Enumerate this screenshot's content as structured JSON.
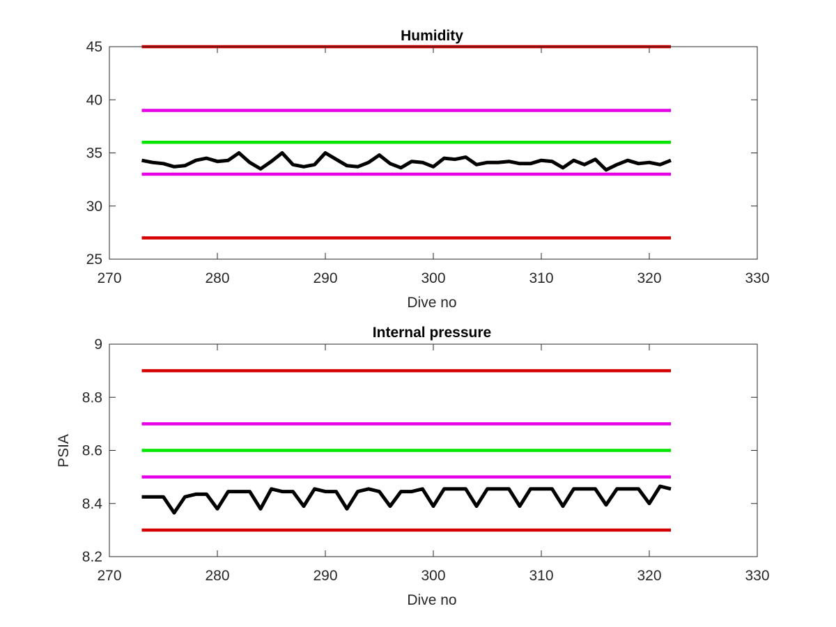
{
  "chart_data": [
    {
      "type": "line",
      "title": "Humidity",
      "xlabel": "Dive no",
      "ylabel": "",
      "xlim": [
        270,
        330
      ],
      "ylim": [
        25,
        45
      ],
      "xticks": [
        270,
        280,
        290,
        300,
        310,
        320,
        330
      ],
      "yticks": [
        25,
        30,
        35,
        40,
        45
      ],
      "grid": false,
      "series": [
        {
          "color": "#d40000",
          "x": [
            273,
            322
          ],
          "y": [
            45,
            45
          ]
        },
        {
          "color": "#e600e6",
          "x": [
            273,
            322
          ],
          "y": [
            39,
            39
          ]
        },
        {
          "color": "#00e600",
          "x": [
            273,
            322
          ],
          "y": [
            36,
            36
          ]
        },
        {
          "color": "#e600e6",
          "x": [
            273,
            322
          ],
          "y": [
            33,
            33
          ]
        },
        {
          "color": "#d40000",
          "x": [
            273,
            322
          ],
          "y": [
            27,
            27
          ]
        },
        {
          "color": "#000000",
          "x": [
            273,
            274,
            275,
            276,
            277,
            278,
            279,
            280,
            281,
            282,
            283,
            284,
            285,
            286,
            287,
            288,
            289,
            290,
            291,
            292,
            293,
            294,
            295,
            296,
            297,
            298,
            299,
            300,
            301,
            302,
            303,
            304,
            305,
            306,
            307,
            308,
            309,
            310,
            311,
            312,
            313,
            314,
            315,
            316,
            317,
            318,
            319,
            320,
            321,
            322
          ],
          "y": [
            34.3,
            34.1,
            34.0,
            33.7,
            33.8,
            34.3,
            34.5,
            34.2,
            34.3,
            35.0,
            34.1,
            33.5,
            34.2,
            35.0,
            33.9,
            33.7,
            33.9,
            35.0,
            34.4,
            33.8,
            33.7,
            34.1,
            34.8,
            34.0,
            33.6,
            34.2,
            34.1,
            33.7,
            34.5,
            34.4,
            34.6,
            33.9,
            34.1,
            34.1,
            34.2,
            34.0,
            34.0,
            34.3,
            34.2,
            33.6,
            34.3,
            33.9,
            34.4,
            33.4,
            33.9,
            34.3,
            34.0,
            34.1,
            33.9,
            34.3
          ]
        }
      ]
    },
    {
      "type": "line",
      "title": "Internal pressure",
      "xlabel": "Dive no",
      "ylabel": "PSIA",
      "xlim": [
        270,
        330
      ],
      "ylim": [
        8.2,
        9.0
      ],
      "xticks": [
        270,
        280,
        290,
        300,
        310,
        320,
        330
      ],
      "yticks": [
        8.2,
        8.4,
        8.6,
        8.8,
        9.0
      ],
      "ytick_labels": [
        "8.2",
        "8.4",
        "8.6",
        "8.8",
        "9"
      ],
      "grid": false,
      "series": [
        {
          "color": "#d40000",
          "x": [
            273,
            322
          ],
          "y": [
            8.9,
            8.9
          ]
        },
        {
          "color": "#e600e6",
          "x": [
            273,
            322
          ],
          "y": [
            8.7,
            8.7
          ]
        },
        {
          "color": "#00e600",
          "x": [
            273,
            322
          ],
          "y": [
            8.6,
            8.6
          ]
        },
        {
          "color": "#e600e6",
          "x": [
            273,
            322
          ],
          "y": [
            8.5,
            8.5
          ]
        },
        {
          "color": "#d40000",
          "x": [
            273,
            322
          ],
          "y": [
            8.3,
            8.3
          ]
        },
        {
          "color": "#000000",
          "x": [
            273,
            274,
            275,
            276,
            277,
            278,
            279,
            280,
            281,
            282,
            283,
            284,
            285,
            286,
            287,
            288,
            289,
            290,
            291,
            292,
            293,
            294,
            295,
            296,
            297,
            298,
            299,
            300,
            301,
            302,
            303,
            304,
            305,
            306,
            307,
            308,
            309,
            310,
            311,
            312,
            313,
            314,
            315,
            316,
            317,
            318,
            319,
            320,
            321,
            322
          ],
          "y": [
            8.425,
            8.425,
            8.425,
            8.365,
            8.425,
            8.435,
            8.435,
            8.38,
            8.445,
            8.445,
            8.445,
            8.38,
            8.455,
            8.445,
            8.445,
            8.39,
            8.455,
            8.445,
            8.445,
            8.38,
            8.445,
            8.455,
            8.445,
            8.39,
            8.445,
            8.445,
            8.455,
            8.39,
            8.455,
            8.455,
            8.455,
            8.39,
            8.455,
            8.455,
            8.455,
            8.39,
            8.455,
            8.455,
            8.455,
            8.39,
            8.455,
            8.455,
            8.455,
            8.395,
            8.455,
            8.455,
            8.455,
            8.4,
            8.465,
            8.455
          ]
        }
      ]
    }
  ]
}
